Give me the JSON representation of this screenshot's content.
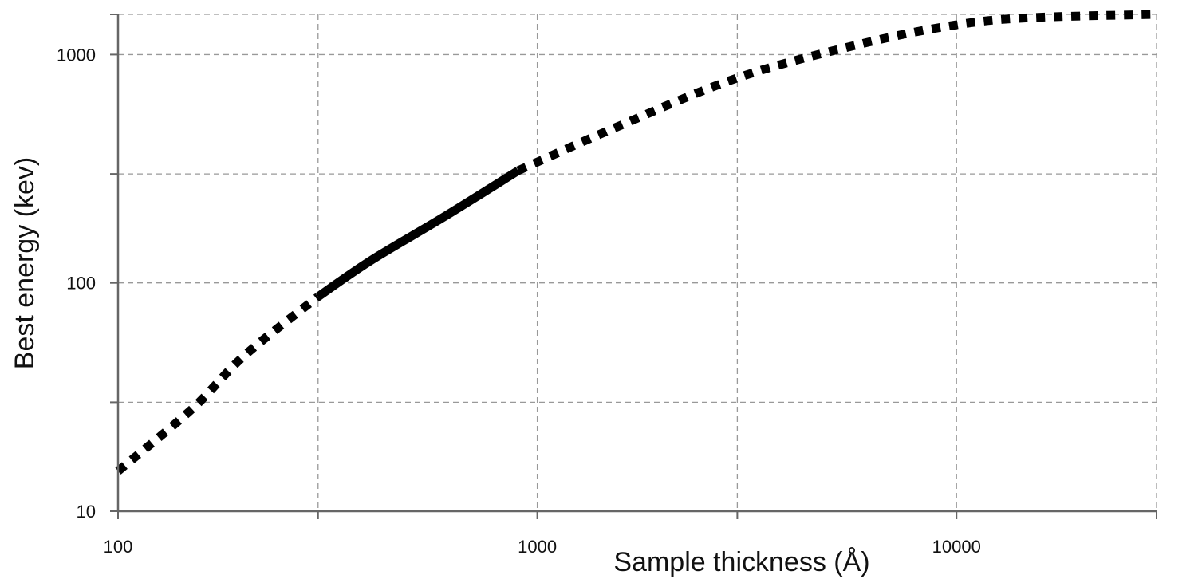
{
  "chart_data": {
    "type": "line",
    "xlabel": "Sample thickness (Å)",
    "ylabel": "Best energy (kev)",
    "x_scale": "log",
    "y_scale": "log",
    "xlim": [
      100,
      30000
    ],
    "ylim": [
      10,
      1500
    ],
    "x_ticks": [
      100,
      1000,
      10000
    ],
    "x_tick_labels": [
      "100",
      "1000",
      "10000"
    ],
    "x_gridlines": [
      100,
      300,
      1000,
      3000,
      10000,
      30000
    ],
    "y_ticks": [
      10,
      100,
      1000
    ],
    "y_tick_labels": [
      "10",
      "100",
      "1000"
    ],
    "y_gridlines": [
      10,
      30,
      100,
      300,
      1000,
      1500
    ],
    "grid": true,
    "legend": "none",
    "series": [
      {
        "style": "dotted",
        "x": [
          100,
          150,
          200,
          300
        ],
        "y": [
          15,
          28,
          48,
          87
        ]
      },
      {
        "style": "solid",
        "x": [
          300,
          400,
          600,
          900
        ],
        "y": [
          87,
          125,
          195,
          310
        ]
      },
      {
        "style": "dotted",
        "x": [
          900,
          1500,
          3000,
          6000,
          10000,
          15000,
          30000
        ],
        "y": [
          310,
          470,
          790,
          1120,
          1350,
          1450,
          1500
        ]
      }
    ],
    "colors": {
      "line": "#000000",
      "grid": "#999999",
      "axis": "#666666"
    }
  }
}
